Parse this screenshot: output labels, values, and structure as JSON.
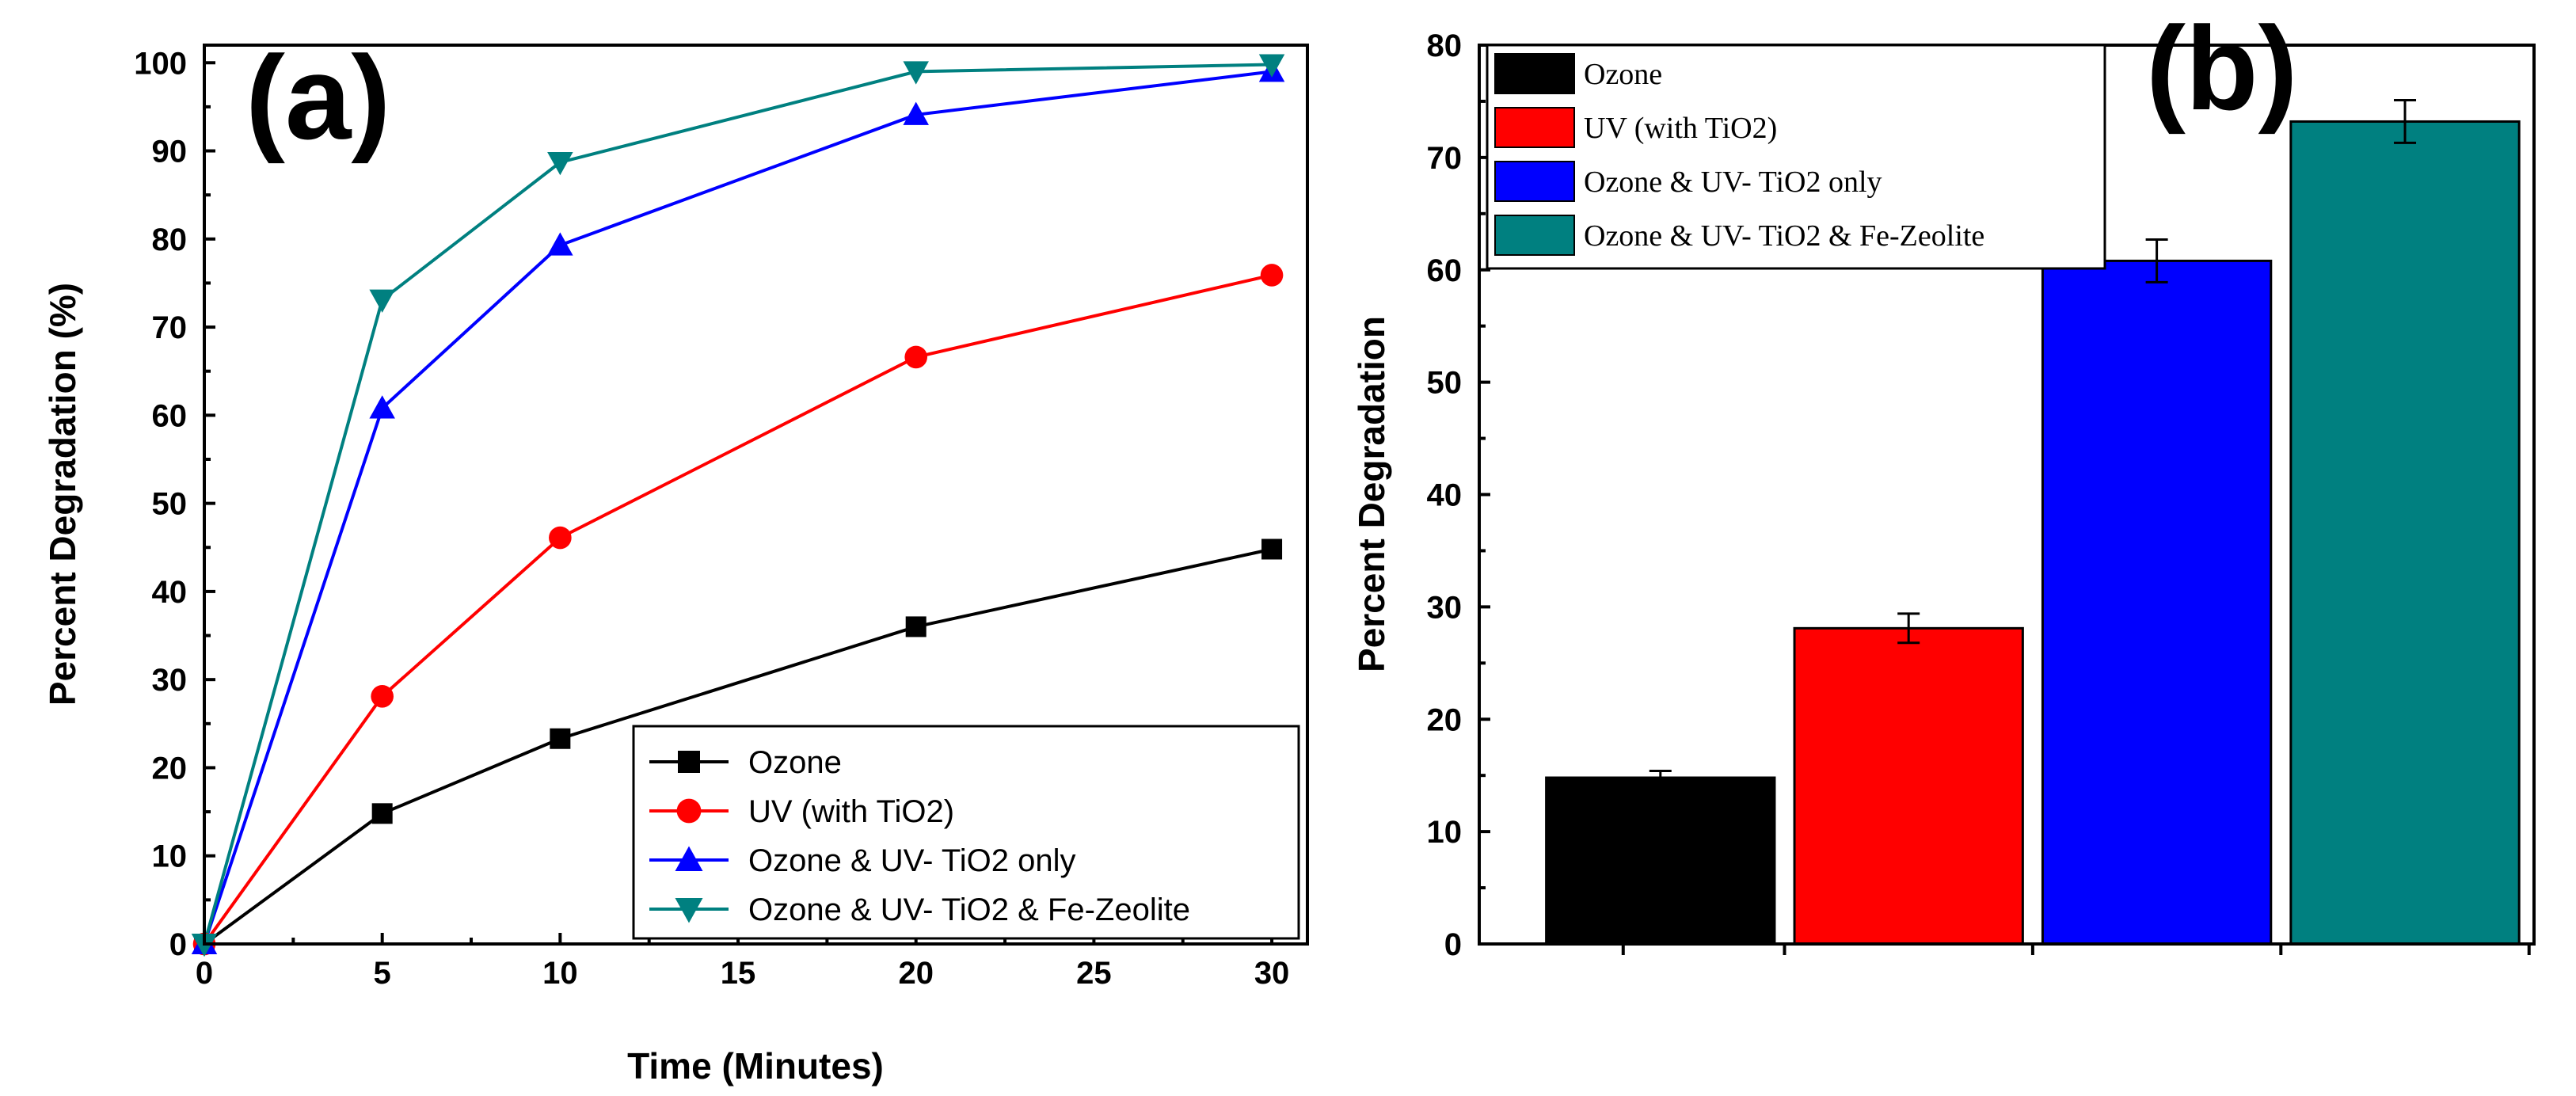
{
  "chart_data": [
    {
      "type": "line",
      "panel_label": "(a)",
      "xlabel": "Time (Minutes)",
      "ylabel": "Percent Degradation (%)",
      "xlim": [
        0,
        31
      ],
      "ylim": [
        0,
        102
      ],
      "xticks": [
        0,
        5,
        10,
        15,
        20,
        25,
        30
      ],
      "yticks": [
        0,
        10,
        20,
        30,
        40,
        50,
        60,
        70,
        80,
        90,
        100
      ],
      "x": [
        0,
        5,
        10,
        20,
        30
      ],
      "legend_position": "bottom-right",
      "series": [
        {
          "name": "Ozone",
          "color": "#000000",
          "marker": "square",
          "values": [
            0,
            14.8,
            23.3,
            36.0,
            44.8
          ]
        },
        {
          "name": "UV (with TiO2)",
          "color": "#ff0000",
          "marker": "circle",
          "values": [
            0,
            28.1,
            46.1,
            66.6,
            75.9
          ]
        },
        {
          "name": "Ozone & UV- TiO2 only",
          "color": "#0000ff",
          "marker": "triangle-up",
          "values": [
            0,
            60.8,
            79.3,
            94.1,
            99.0
          ]
        },
        {
          "name": "Ozone & UV- TiO2 & Fe-Zeolite",
          "color": "#008080",
          "marker": "triangle-down",
          "values": [
            0,
            73.1,
            88.7,
            99.0,
            99.8
          ]
        }
      ]
    },
    {
      "type": "bar",
      "panel_label": "(b)",
      "xlabel": "",
      "ylabel": "Percent Degradation",
      "ylim": [
        0,
        80
      ],
      "yticks": [
        0,
        10,
        20,
        30,
        40,
        50,
        60,
        70,
        80
      ],
      "legend_position": "top-left",
      "categories": [
        "Ozone",
        "UV (with TiO2)",
        "Ozone & UV- TiO2 only",
        "Ozone & UV- TiO2 & Fe-Zeolite"
      ],
      "values": [
        14.8,
        28.1,
        60.8,
        73.2
      ],
      "errors": [
        0.6,
        1.3,
        1.9,
        1.9
      ],
      "colors": [
        "#000000",
        "#ff0000",
        "#0000ff",
        "#008080"
      ]
    }
  ]
}
